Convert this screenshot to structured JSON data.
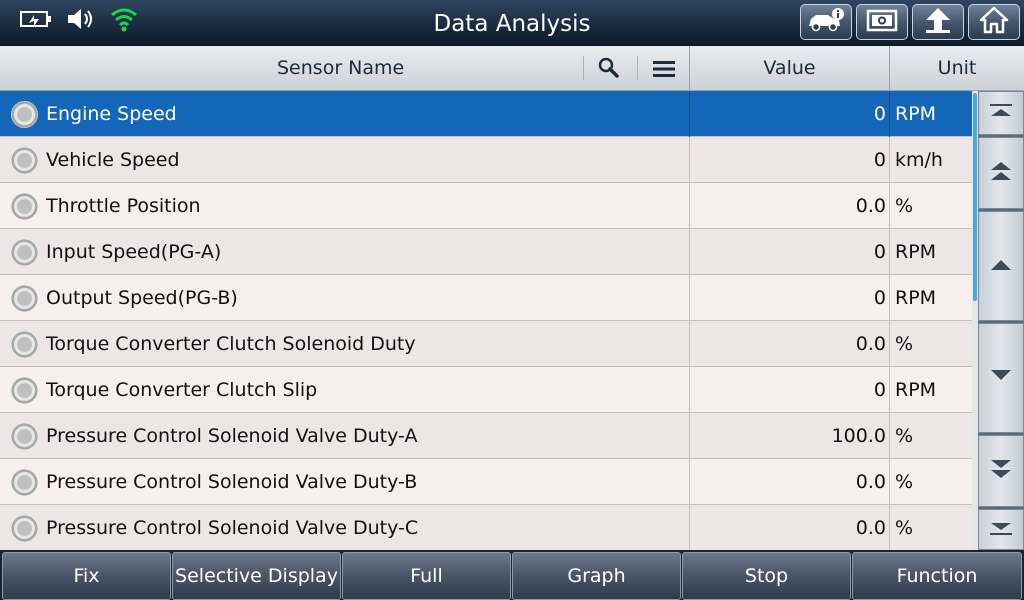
{
  "window": {
    "title": "Data Analysis"
  },
  "status_icons": [
    "battery-icon",
    "speaker-icon",
    "wifi-icon"
  ],
  "top_buttons": [
    {
      "icon": "vehicle-info-icon"
    },
    {
      "icon": "screenshot-icon"
    },
    {
      "icon": "back-arrow-icon"
    },
    {
      "icon": "home-icon"
    }
  ],
  "header": {
    "sensor_name": "Sensor Name",
    "value": "Value",
    "unit": "Unit"
  },
  "rows": [
    {
      "name": "Engine Speed",
      "value": "0",
      "unit": "RPM",
      "selected": true
    },
    {
      "name": "Vehicle Speed",
      "value": "0",
      "unit": "km/h"
    },
    {
      "name": "Throttle Position",
      "value": "0.0",
      "unit": "%"
    },
    {
      "name": "Input Speed(PG-A)",
      "value": "0",
      "unit": "RPM"
    },
    {
      "name": "Output Speed(PG-B)",
      "value": "0",
      "unit": "RPM"
    },
    {
      "name": "Torque Converter Clutch Solenoid Duty",
      "value": "0.0",
      "unit": "%"
    },
    {
      "name": "Torque Converter Clutch Slip",
      "value": "0",
      "unit": "RPM"
    },
    {
      "name": "Pressure Control Solenoid Valve Duty-A",
      "value": "100.0",
      "unit": "%"
    },
    {
      "name": "Pressure Control Solenoid Valve Duty-B",
      "value": "0.0",
      "unit": "%"
    },
    {
      "name": "Pressure Control Solenoid Valve Duty-C",
      "value": "0.0",
      "unit": "%"
    }
  ],
  "bottom_buttons": [
    {
      "label": "Fix"
    },
    {
      "label": "Selective Display"
    },
    {
      "label": "Full"
    },
    {
      "label": "Graph"
    },
    {
      "label": "Stop"
    },
    {
      "label": "Function"
    }
  ],
  "colors": {
    "selected_row": "#1466b8",
    "scroll_thumb": "#4aa8e0",
    "wifi": "#1fd24a"
  }
}
